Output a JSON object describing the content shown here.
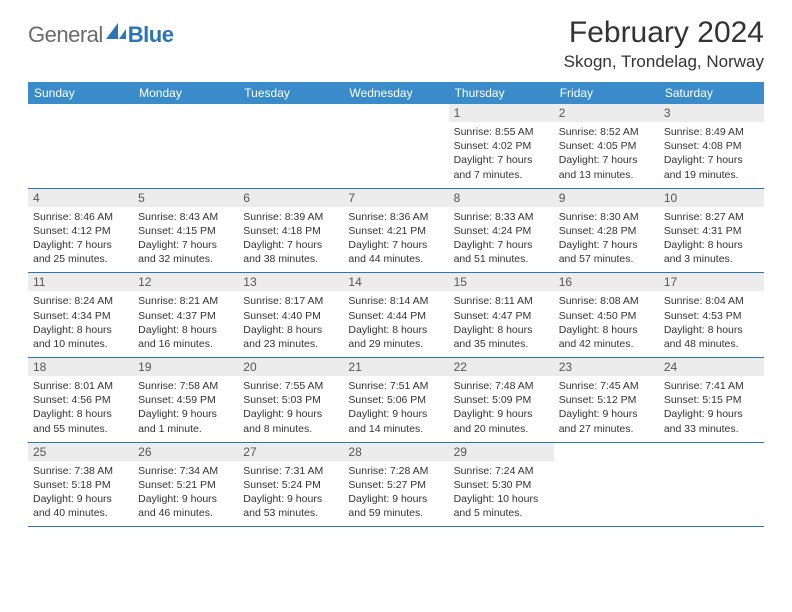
{
  "logo": {
    "text1": "General",
    "text2": "Blue",
    "mark_color": "#2b74b8"
  },
  "title": "February 2024",
  "subtitle": "Skogn, Trondelag, Norway",
  "colors": {
    "header_bg": "#3a8bc9",
    "header_text": "#ffffff",
    "rule": "#2b74b8",
    "daynum_bg": "#ececec",
    "body_text": "#333333"
  },
  "weekdays": [
    "Sunday",
    "Monday",
    "Tuesday",
    "Wednesday",
    "Thursday",
    "Friday",
    "Saturday"
  ],
  "weeks": [
    [
      {
        "n": "",
        "sunrise": "",
        "sunset": "",
        "daylight": ""
      },
      {
        "n": "",
        "sunrise": "",
        "sunset": "",
        "daylight": ""
      },
      {
        "n": "",
        "sunrise": "",
        "sunset": "",
        "daylight": ""
      },
      {
        "n": "",
        "sunrise": "",
        "sunset": "",
        "daylight": ""
      },
      {
        "n": "1",
        "sunrise": "Sunrise: 8:55 AM",
        "sunset": "Sunset: 4:02 PM",
        "daylight": "Daylight: 7 hours and 7 minutes."
      },
      {
        "n": "2",
        "sunrise": "Sunrise: 8:52 AM",
        "sunset": "Sunset: 4:05 PM",
        "daylight": "Daylight: 7 hours and 13 minutes."
      },
      {
        "n": "3",
        "sunrise": "Sunrise: 8:49 AM",
        "sunset": "Sunset: 4:08 PM",
        "daylight": "Daylight: 7 hours and 19 minutes."
      }
    ],
    [
      {
        "n": "4",
        "sunrise": "Sunrise: 8:46 AM",
        "sunset": "Sunset: 4:12 PM",
        "daylight": "Daylight: 7 hours and 25 minutes."
      },
      {
        "n": "5",
        "sunrise": "Sunrise: 8:43 AM",
        "sunset": "Sunset: 4:15 PM",
        "daylight": "Daylight: 7 hours and 32 minutes."
      },
      {
        "n": "6",
        "sunrise": "Sunrise: 8:39 AM",
        "sunset": "Sunset: 4:18 PM",
        "daylight": "Daylight: 7 hours and 38 minutes."
      },
      {
        "n": "7",
        "sunrise": "Sunrise: 8:36 AM",
        "sunset": "Sunset: 4:21 PM",
        "daylight": "Daylight: 7 hours and 44 minutes."
      },
      {
        "n": "8",
        "sunrise": "Sunrise: 8:33 AM",
        "sunset": "Sunset: 4:24 PM",
        "daylight": "Daylight: 7 hours and 51 minutes."
      },
      {
        "n": "9",
        "sunrise": "Sunrise: 8:30 AM",
        "sunset": "Sunset: 4:28 PM",
        "daylight": "Daylight: 7 hours and 57 minutes."
      },
      {
        "n": "10",
        "sunrise": "Sunrise: 8:27 AM",
        "sunset": "Sunset: 4:31 PM",
        "daylight": "Daylight: 8 hours and 3 minutes."
      }
    ],
    [
      {
        "n": "11",
        "sunrise": "Sunrise: 8:24 AM",
        "sunset": "Sunset: 4:34 PM",
        "daylight": "Daylight: 8 hours and 10 minutes."
      },
      {
        "n": "12",
        "sunrise": "Sunrise: 8:21 AM",
        "sunset": "Sunset: 4:37 PM",
        "daylight": "Daylight: 8 hours and 16 minutes."
      },
      {
        "n": "13",
        "sunrise": "Sunrise: 8:17 AM",
        "sunset": "Sunset: 4:40 PM",
        "daylight": "Daylight: 8 hours and 23 minutes."
      },
      {
        "n": "14",
        "sunrise": "Sunrise: 8:14 AM",
        "sunset": "Sunset: 4:44 PM",
        "daylight": "Daylight: 8 hours and 29 minutes."
      },
      {
        "n": "15",
        "sunrise": "Sunrise: 8:11 AM",
        "sunset": "Sunset: 4:47 PM",
        "daylight": "Daylight: 8 hours and 35 minutes."
      },
      {
        "n": "16",
        "sunrise": "Sunrise: 8:08 AM",
        "sunset": "Sunset: 4:50 PM",
        "daylight": "Daylight: 8 hours and 42 minutes."
      },
      {
        "n": "17",
        "sunrise": "Sunrise: 8:04 AM",
        "sunset": "Sunset: 4:53 PM",
        "daylight": "Daylight: 8 hours and 48 minutes."
      }
    ],
    [
      {
        "n": "18",
        "sunrise": "Sunrise: 8:01 AM",
        "sunset": "Sunset: 4:56 PM",
        "daylight": "Daylight: 8 hours and 55 minutes."
      },
      {
        "n": "19",
        "sunrise": "Sunrise: 7:58 AM",
        "sunset": "Sunset: 4:59 PM",
        "daylight": "Daylight: 9 hours and 1 minute."
      },
      {
        "n": "20",
        "sunrise": "Sunrise: 7:55 AM",
        "sunset": "Sunset: 5:03 PM",
        "daylight": "Daylight: 9 hours and 8 minutes."
      },
      {
        "n": "21",
        "sunrise": "Sunrise: 7:51 AM",
        "sunset": "Sunset: 5:06 PM",
        "daylight": "Daylight: 9 hours and 14 minutes."
      },
      {
        "n": "22",
        "sunrise": "Sunrise: 7:48 AM",
        "sunset": "Sunset: 5:09 PM",
        "daylight": "Daylight: 9 hours and 20 minutes."
      },
      {
        "n": "23",
        "sunrise": "Sunrise: 7:45 AM",
        "sunset": "Sunset: 5:12 PM",
        "daylight": "Daylight: 9 hours and 27 minutes."
      },
      {
        "n": "24",
        "sunrise": "Sunrise: 7:41 AM",
        "sunset": "Sunset: 5:15 PM",
        "daylight": "Daylight: 9 hours and 33 minutes."
      }
    ],
    [
      {
        "n": "25",
        "sunrise": "Sunrise: 7:38 AM",
        "sunset": "Sunset: 5:18 PM",
        "daylight": "Daylight: 9 hours and 40 minutes."
      },
      {
        "n": "26",
        "sunrise": "Sunrise: 7:34 AM",
        "sunset": "Sunset: 5:21 PM",
        "daylight": "Daylight: 9 hours and 46 minutes."
      },
      {
        "n": "27",
        "sunrise": "Sunrise: 7:31 AM",
        "sunset": "Sunset: 5:24 PM",
        "daylight": "Daylight: 9 hours and 53 minutes."
      },
      {
        "n": "28",
        "sunrise": "Sunrise: 7:28 AM",
        "sunset": "Sunset: 5:27 PM",
        "daylight": "Daylight: 9 hours and 59 minutes."
      },
      {
        "n": "29",
        "sunrise": "Sunrise: 7:24 AM",
        "sunset": "Sunset: 5:30 PM",
        "daylight": "Daylight: 10 hours and 5 minutes."
      },
      {
        "n": "",
        "sunrise": "",
        "sunset": "",
        "daylight": ""
      },
      {
        "n": "",
        "sunrise": "",
        "sunset": "",
        "daylight": ""
      }
    ]
  ]
}
